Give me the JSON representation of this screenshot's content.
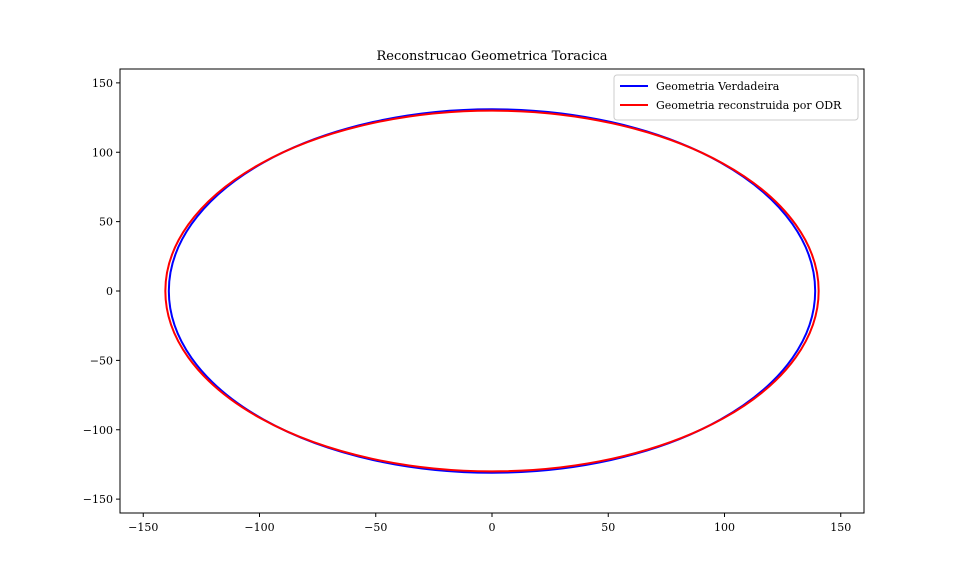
{
  "chart_data": {
    "type": "line",
    "title": "Reconstrucao Geometrica Toracica",
    "xlabel": "",
    "ylabel": "",
    "xlim": [
      -160,
      160
    ],
    "ylim": [
      -160,
      160
    ],
    "xticks": [
      -150,
      -100,
      -50,
      0,
      50,
      100,
      150
    ],
    "yticks": [
      -150,
      -100,
      -50,
      0,
      50,
      100,
      150
    ],
    "xtick_labels": [
      "−150",
      "−100",
      "−50",
      "0",
      "50",
      "100",
      "150"
    ],
    "ytick_labels": [
      "−150",
      "−100",
      "−50",
      "0",
      "50",
      "100",
      "150"
    ],
    "grid": false,
    "legend_placement": "top-right",
    "series": [
      {
        "name": "Geometria Verdadeira",
        "color": "#0000ff",
        "shape": "ellipse",
        "center": [
          0,
          0
        ],
        "semi_axis_x": 139,
        "semi_axis_y": 131
      },
      {
        "name": "Geometria reconstruida por ODR",
        "color": "#ff0000",
        "shape": "ellipse",
        "center": [
          0,
          0
        ],
        "semi_axis_x": 140.5,
        "semi_axis_y": 130
      }
    ]
  }
}
